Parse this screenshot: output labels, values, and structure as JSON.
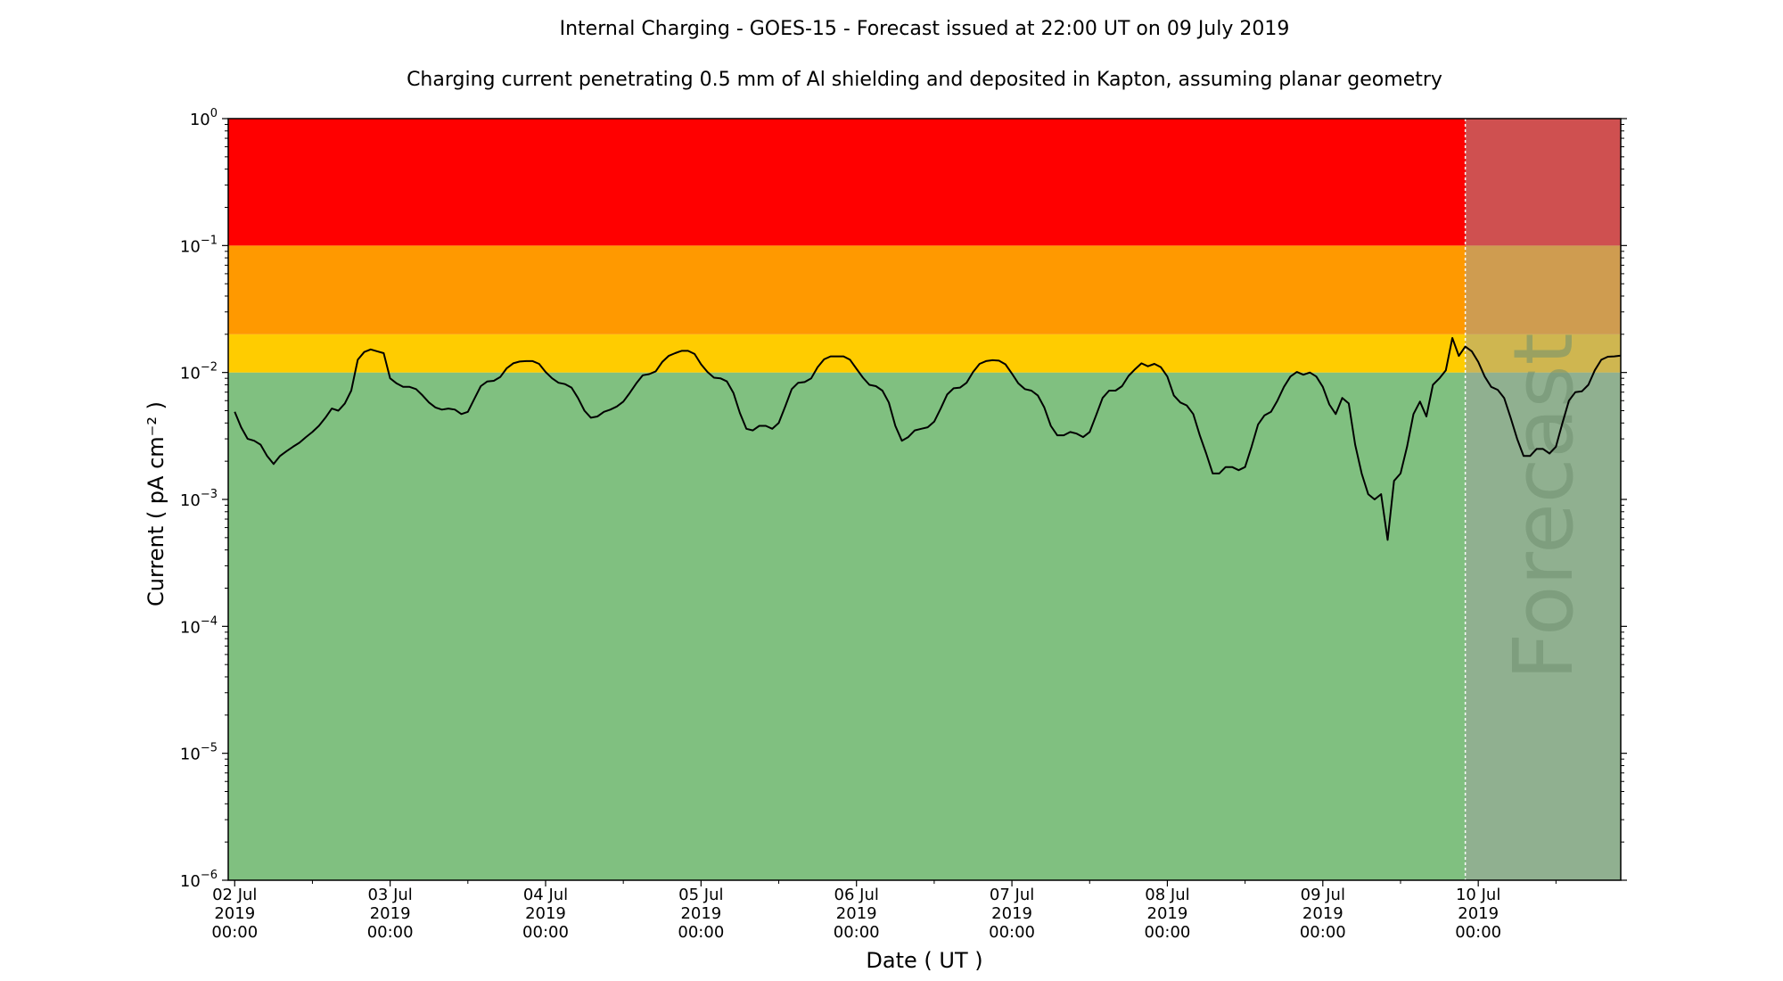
{
  "chart_data": {
    "type": "line",
    "title": "Internal Charging - GOES-15 - Forecast issued at 22:00 UT on 09 July 2019",
    "subtitle": "Charging current penetrating 0.5 mm of Al shielding and deposited in Kapton, assuming planar geometry",
    "xlabel": "Date ( UT )",
    "ylabel": "Current ( pA cm⁻² )",
    "yscale": "log",
    "ylim": [
      1e-06,
      1
    ],
    "xlim": [
      "2019-07-01T23:00",
      "2019-07-10T22:00"
    ],
    "forecast_start": "2019-07-09T22:00",
    "forecast_label": "Forecast",
    "y_ticks": [
      {
        "value": 1e-06,
        "base": "10",
        "exp": "−6"
      },
      {
        "value": 1e-05,
        "base": "10",
        "exp": "−5"
      },
      {
        "value": 0.0001,
        "base": "10",
        "exp": "−4"
      },
      {
        "value": 0.001,
        "base": "10",
        "exp": "−3"
      },
      {
        "value": 0.01,
        "base": "10",
        "exp": "−2"
      },
      {
        "value": 0.1,
        "base": "10",
        "exp": "−1"
      },
      {
        "value": 1,
        "base": "10",
        "exp": "0"
      }
    ],
    "x_ticks": [
      {
        "time": "2019-07-02T00:00",
        "lines": [
          "02 Jul",
          "2019",
          "00:00"
        ]
      },
      {
        "time": "2019-07-03T00:00",
        "lines": [
          "03 Jul",
          "2019",
          "00:00"
        ]
      },
      {
        "time": "2019-07-04T00:00",
        "lines": [
          "04 Jul",
          "2019",
          "00:00"
        ]
      },
      {
        "time": "2019-07-05T00:00",
        "lines": [
          "05 Jul",
          "2019",
          "00:00"
        ]
      },
      {
        "time": "2019-07-06T00:00",
        "lines": [
          "06 Jul",
          "2019",
          "00:00"
        ]
      },
      {
        "time": "2019-07-07T00:00",
        "lines": [
          "07 Jul",
          "2019",
          "00:00"
        ]
      },
      {
        "time": "2019-07-08T00:00",
        "lines": [
          "08 Jul",
          "2019",
          "00:00"
        ]
      },
      {
        "time": "2019-07-09T00:00",
        "lines": [
          "09 Jul",
          "2019",
          "00:00"
        ]
      },
      {
        "time": "2019-07-10T00:00",
        "lines": [
          "10 Jul",
          "2019",
          "00:00"
        ]
      }
    ],
    "bands": [
      {
        "from": 1e-06,
        "to": 0.01,
        "color": "#80c080"
      },
      {
        "from": 0.01,
        "to": 0.02,
        "color": "#ffcc00"
      },
      {
        "from": 0.02,
        "to": 0.1,
        "color": "#ff9900"
      },
      {
        "from": 0.1,
        "to": 1,
        "color": "#ff0000"
      }
    ],
    "forecast_overlay_color": "#a0a0a0",
    "series": [
      {
        "color": "#000000",
        "points": [
          [
            "2019-07-02T00:00",
            0.0049
          ],
          [
            "2019-07-02T01:00",
            0.0037
          ],
          [
            "2019-07-02T02:00",
            0.003
          ],
          [
            "2019-07-02T03:00",
            0.0029
          ],
          [
            "2019-07-02T04:00",
            0.0027
          ],
          [
            "2019-07-02T05:00",
            0.0022
          ],
          [
            "2019-07-02T06:00",
            0.0019
          ],
          [
            "2019-07-02T07:00",
            0.0022
          ],
          [
            "2019-07-02T08:00",
            0.0024
          ],
          [
            "2019-07-02T09:00",
            0.0026
          ],
          [
            "2019-07-02T10:00",
            0.0028
          ],
          [
            "2019-07-02T11:00",
            0.0031
          ],
          [
            "2019-07-02T12:00",
            0.0034
          ],
          [
            "2019-07-02T13:00",
            0.0038
          ],
          [
            "2019-07-02T14:00",
            0.0044
          ],
          [
            "2019-07-02T15:00",
            0.0052
          ],
          [
            "2019-07-02T16:00",
            0.005
          ],
          [
            "2019-07-02T17:00",
            0.0057
          ],
          [
            "2019-07-02T18:00",
            0.0072
          ],
          [
            "2019-07-02T19:00",
            0.0126
          ],
          [
            "2019-07-02T20:00",
            0.0145
          ],
          [
            "2019-07-02T21:00",
            0.0152
          ],
          [
            "2019-07-02T22:00",
            0.0147
          ],
          [
            "2019-07-02T23:00",
            0.0142
          ],
          [
            "2019-07-03T00:00",
            0.009
          ],
          [
            "2019-07-03T01:00",
            0.0082
          ],
          [
            "2019-07-03T02:00",
            0.0077
          ],
          [
            "2019-07-03T03:00",
            0.0077
          ],
          [
            "2019-07-03T04:00",
            0.0074
          ],
          [
            "2019-07-03T05:00",
            0.0066
          ],
          [
            "2019-07-03T06:00",
            0.0058
          ],
          [
            "2019-07-03T07:00",
            0.0053
          ],
          [
            "2019-07-03T08:00",
            0.0051
          ],
          [
            "2019-07-03T09:00",
            0.0052
          ],
          [
            "2019-07-03T10:00",
            0.0051
          ],
          [
            "2019-07-03T11:00",
            0.0047
          ],
          [
            "2019-07-03T12:00",
            0.0049
          ],
          [
            "2019-07-03T13:00",
            0.0062
          ],
          [
            "2019-07-03T14:00",
            0.0078
          ],
          [
            "2019-07-03T15:00",
            0.0085
          ],
          [
            "2019-07-03T16:00",
            0.0086
          ],
          [
            "2019-07-03T17:00",
            0.0092
          ],
          [
            "2019-07-03T18:00",
            0.0108
          ],
          [
            "2019-07-03T19:00",
            0.0118
          ],
          [
            "2019-07-03T20:00",
            0.0122
          ],
          [
            "2019-07-03T21:00",
            0.0123
          ],
          [
            "2019-07-03T22:00",
            0.0123
          ],
          [
            "2019-07-03T23:00",
            0.0117
          ],
          [
            "2019-07-04T00:00",
            0.0101
          ],
          [
            "2019-07-04T01:00",
            0.009
          ],
          [
            "2019-07-04T02:00",
            0.0083
          ],
          [
            "2019-07-04T03:00",
            0.0081
          ],
          [
            "2019-07-04T04:00",
            0.0076
          ],
          [
            "2019-07-04T05:00",
            0.0063
          ],
          [
            "2019-07-04T06:00",
            0.005
          ],
          [
            "2019-07-04T07:00",
            0.0044
          ],
          [
            "2019-07-04T08:00",
            0.0045
          ],
          [
            "2019-07-04T09:00",
            0.0049
          ],
          [
            "2019-07-04T10:00",
            0.0051
          ],
          [
            "2019-07-04T11:00",
            0.0054
          ],
          [
            "2019-07-04T12:00",
            0.0059
          ],
          [
            "2019-07-04T13:00",
            0.0069
          ],
          [
            "2019-07-04T14:00",
            0.0082
          ],
          [
            "2019-07-04T15:00",
            0.0095
          ],
          [
            "2019-07-04T16:00",
            0.0097
          ],
          [
            "2019-07-04T17:00",
            0.0102
          ],
          [
            "2019-07-04T18:00",
            0.0121
          ],
          [
            "2019-07-04T19:00",
            0.0135
          ],
          [
            "2019-07-04T20:00",
            0.0142
          ],
          [
            "2019-07-04T21:00",
            0.0148
          ],
          [
            "2019-07-04T22:00",
            0.0148
          ],
          [
            "2019-07-04T23:00",
            0.014
          ],
          [
            "2019-07-05T00:00",
            0.0116
          ],
          [
            "2019-07-05T01:00",
            0.0101
          ],
          [
            "2019-07-05T02:00",
            0.0091
          ],
          [
            "2019-07-05T03:00",
            0.009
          ],
          [
            "2019-07-05T04:00",
            0.0085
          ],
          [
            "2019-07-05T05:00",
            0.0069
          ],
          [
            "2019-07-05T06:00",
            0.0048
          ],
          [
            "2019-07-05T07:00",
            0.0036
          ],
          [
            "2019-07-05T08:00",
            0.0035
          ],
          [
            "2019-07-05T09:00",
            0.0038
          ],
          [
            "2019-07-05T10:00",
            0.0038
          ],
          [
            "2019-07-05T11:00",
            0.0036
          ],
          [
            "2019-07-05T12:00",
            0.004
          ],
          [
            "2019-07-05T13:00",
            0.0054
          ],
          [
            "2019-07-05T14:00",
            0.0074
          ],
          [
            "2019-07-05T15:00",
            0.0083
          ],
          [
            "2019-07-05T16:00",
            0.0084
          ],
          [
            "2019-07-05T17:00",
            0.009
          ],
          [
            "2019-07-05T18:00",
            0.011
          ],
          [
            "2019-07-05T19:00",
            0.0127
          ],
          [
            "2019-07-05T20:00",
            0.0134
          ],
          [
            "2019-07-05T21:00",
            0.0134
          ],
          [
            "2019-07-05T22:00",
            0.0134
          ],
          [
            "2019-07-05T23:00",
            0.0126
          ],
          [
            "2019-07-06T00:00",
            0.0107
          ],
          [
            "2019-07-06T01:00",
            0.0091
          ],
          [
            "2019-07-06T02:00",
            0.008
          ],
          [
            "2019-07-06T03:00",
            0.0078
          ],
          [
            "2019-07-06T04:00",
            0.0072
          ],
          [
            "2019-07-06T05:00",
            0.0058
          ],
          [
            "2019-07-06T06:00",
            0.0038
          ],
          [
            "2019-07-06T07:00",
            0.0029
          ],
          [
            "2019-07-06T08:00",
            0.0031
          ],
          [
            "2019-07-06T09:00",
            0.0035
          ],
          [
            "2019-07-06T10:00",
            0.0036
          ],
          [
            "2019-07-06T11:00",
            0.0037
          ],
          [
            "2019-07-06T12:00",
            0.0041
          ],
          [
            "2019-07-06T13:00",
            0.0052
          ],
          [
            "2019-07-06T14:00",
            0.0067
          ],
          [
            "2019-07-06T15:00",
            0.0075
          ],
          [
            "2019-07-06T16:00",
            0.0076
          ],
          [
            "2019-07-06T17:00",
            0.0083
          ],
          [
            "2019-07-06T18:00",
            0.0101
          ],
          [
            "2019-07-06T19:00",
            0.0117
          ],
          [
            "2019-07-06T20:00",
            0.0123
          ],
          [
            "2019-07-06T21:00",
            0.0125
          ],
          [
            "2019-07-06T22:00",
            0.0124
          ],
          [
            "2019-07-06T23:00",
            0.0116
          ],
          [
            "2019-07-07T00:00",
            0.0098
          ],
          [
            "2019-07-07T01:00",
            0.0082
          ],
          [
            "2019-07-07T02:00",
            0.0074
          ],
          [
            "2019-07-07T03:00",
            0.0072
          ],
          [
            "2019-07-07T04:00",
            0.0066
          ],
          [
            "2019-07-07T05:00",
            0.0053
          ],
          [
            "2019-07-07T06:00",
            0.0038
          ],
          [
            "2019-07-07T07:00",
            0.0032
          ],
          [
            "2019-07-07T08:00",
            0.0032
          ],
          [
            "2019-07-07T09:00",
            0.0034
          ],
          [
            "2019-07-07T10:00",
            0.0033
          ],
          [
            "2019-07-07T11:00",
            0.0031
          ],
          [
            "2019-07-07T12:00",
            0.0034
          ],
          [
            "2019-07-07T13:00",
            0.0046
          ],
          [
            "2019-07-07T14:00",
            0.0063
          ],
          [
            "2019-07-07T15:00",
            0.0072
          ],
          [
            "2019-07-07T16:00",
            0.0072
          ],
          [
            "2019-07-07T17:00",
            0.0078
          ],
          [
            "2019-07-07T18:00",
            0.0094
          ],
          [
            "2019-07-07T19:00",
            0.0106
          ],
          [
            "2019-07-07T20:00",
            0.0118
          ],
          [
            "2019-07-07T21:00",
            0.0112
          ],
          [
            "2019-07-07T22:00",
            0.0117
          ],
          [
            "2019-07-07T23:00",
            0.011
          ],
          [
            "2019-07-08T00:00",
            0.0093
          ],
          [
            "2019-07-08T01:00",
            0.0066
          ],
          [
            "2019-07-08T02:00",
            0.0058
          ],
          [
            "2019-07-08T03:00",
            0.0055
          ],
          [
            "2019-07-08T04:00",
            0.0047
          ],
          [
            "2019-07-08T05:00",
            0.0032
          ],
          [
            "2019-07-08T06:00",
            0.0023
          ],
          [
            "2019-07-08T07:00",
            0.0016
          ],
          [
            "2019-07-08T08:00",
            0.0016
          ],
          [
            "2019-07-08T09:00",
            0.0018
          ],
          [
            "2019-07-08T10:00",
            0.0018
          ],
          [
            "2019-07-08T11:00",
            0.0017
          ],
          [
            "2019-07-08T12:00",
            0.0018
          ],
          [
            "2019-07-08T13:00",
            0.0026
          ],
          [
            "2019-07-08T14:00",
            0.0039
          ],
          [
            "2019-07-08T15:00",
            0.0046
          ],
          [
            "2019-07-08T16:00",
            0.0049
          ],
          [
            "2019-07-08T17:00",
            0.006
          ],
          [
            "2019-07-08T18:00",
            0.0077
          ],
          [
            "2019-07-08T19:00",
            0.0093
          ],
          [
            "2019-07-08T20:00",
            0.0101
          ],
          [
            "2019-07-08T21:00",
            0.0096
          ],
          [
            "2019-07-08T22:00",
            0.01
          ],
          [
            "2019-07-08T23:00",
            0.0093
          ],
          [
            "2019-07-09T00:00",
            0.0077
          ],
          [
            "2019-07-09T01:00",
            0.0056
          ],
          [
            "2019-07-09T02:00",
            0.0047
          ],
          [
            "2019-07-09T03:00",
            0.0063
          ],
          [
            "2019-07-09T04:00",
            0.0057
          ],
          [
            "2019-07-09T05:00",
            0.0027
          ],
          [
            "2019-07-09T06:00",
            0.0016
          ],
          [
            "2019-07-09T07:00",
            0.0011
          ],
          [
            "2019-07-09T08:00",
            0.001
          ],
          [
            "2019-07-09T09:00",
            0.0011
          ],
          [
            "2019-07-09T10:00",
            0.00048
          ],
          [
            "2019-07-09T11:00",
            0.0014
          ],
          [
            "2019-07-09T12:00",
            0.0016
          ],
          [
            "2019-07-09T13:00",
            0.0026
          ],
          [
            "2019-07-09T14:00",
            0.0047
          ],
          [
            "2019-07-09T15:00",
            0.0059
          ],
          [
            "2019-07-09T16:00",
            0.0045
          ],
          [
            "2019-07-09T17:00",
            0.008
          ],
          [
            "2019-07-09T18:00",
            0.009
          ],
          [
            "2019-07-09T19:00",
            0.0104
          ],
          [
            "2019-07-09T20:00",
            0.0187
          ],
          [
            "2019-07-09T21:00",
            0.0135
          ],
          [
            "2019-07-09T22:00",
            0.016
          ],
          [
            "2019-07-09T23:00",
            0.0147
          ],
          [
            "2019-07-10T00:00",
            0.0121
          ],
          [
            "2019-07-10T01:00",
            0.0093
          ],
          [
            "2019-07-10T02:00",
            0.0077
          ],
          [
            "2019-07-10T03:00",
            0.0073
          ],
          [
            "2019-07-10T04:00",
            0.0063
          ],
          [
            "2019-07-10T05:00",
            0.0044
          ],
          [
            "2019-07-10T06:00",
            0.003
          ],
          [
            "2019-07-10T07:00",
            0.0022
          ],
          [
            "2019-07-10T08:00",
            0.0022
          ],
          [
            "2019-07-10T09:00",
            0.0025
          ],
          [
            "2019-07-10T10:00",
            0.0025
          ],
          [
            "2019-07-10T11:00",
            0.0023
          ],
          [
            "2019-07-10T12:00",
            0.0026
          ],
          [
            "2019-07-10T13:00",
            0.004
          ],
          [
            "2019-07-10T14:00",
            0.006
          ],
          [
            "2019-07-10T15:00",
            0.007
          ],
          [
            "2019-07-10T16:00",
            0.0071
          ],
          [
            "2019-07-10T17:00",
            0.008
          ],
          [
            "2019-07-10T18:00",
            0.0104
          ],
          [
            "2019-07-10T19:00",
            0.0126
          ],
          [
            "2019-07-10T20:00",
            0.0133
          ],
          [
            "2019-07-10T21:00",
            0.0134
          ],
          [
            "2019-07-10T22:00",
            0.0136
          ]
        ]
      }
    ]
  }
}
